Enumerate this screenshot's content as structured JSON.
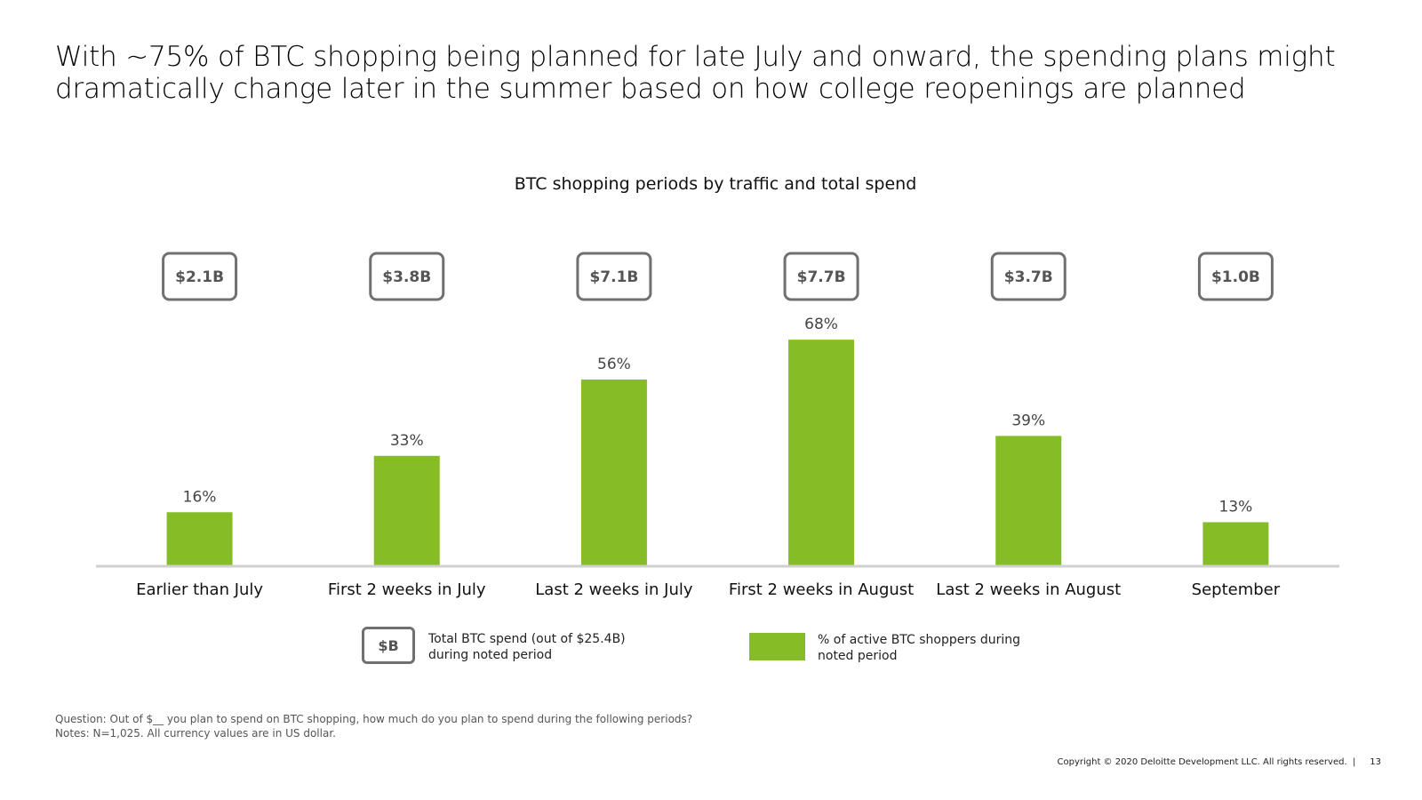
{
  "slide": {
    "title": "With ~75% of BTC shopping being planned for late July and onward, the spending plans might dramatically change later in the summer based on how college reopenings are planned",
    "legend": {
      "box_label": "$B",
      "box_text": "Total BTC spend (out of $25.4B) during noted period",
      "swatch_text": "% of active BTC shoppers during noted period"
    },
    "notes": {
      "question": "Question: Out of $__ you plan to spend on BTC shopping, how much do you plan to spend during the following periods?",
      "notes": "Notes: N=1,025. All currency values are in US dollar."
    },
    "footer": {
      "copyright": "Copyright © 2020 Deloitte Development LLC. All rights reserved.",
      "page_number": "13"
    }
  },
  "colors": {
    "bar": "#86BC25",
    "axis": "#D0D0D0",
    "spend_box_border": "#707070",
    "spend_box_text": "#555555"
  },
  "chart_data": {
    "type": "bar",
    "title": "BTC shopping periods by traffic and total spend",
    "xlabel": "",
    "ylabel": "",
    "ylim": [
      0,
      75
    ],
    "grid": false,
    "categories": [
      "Earlier than July",
      "First 2 weeks in July",
      "Last 2 weeks in July",
      "First 2 weeks in August",
      "Last 2 weeks in August",
      "September"
    ],
    "series": [
      {
        "name": "% of active BTC shoppers during noted period",
        "values": [
          16,
          33,
          56,
          68,
          39,
          13
        ],
        "labels": [
          "16%",
          "33%",
          "56%",
          "68%",
          "39%",
          "13%"
        ]
      }
    ],
    "spend": {
      "name": "Total BTC spend (out of $25.4B) during noted period",
      "values": [
        2.1,
        3.8,
        7.1,
        7.7,
        3.7,
        1.0
      ],
      "labels": [
        "$2.1B",
        "$3.8B",
        "$7.1B",
        "$7.7B",
        "$3.7B",
        "$1.0B"
      ]
    }
  }
}
